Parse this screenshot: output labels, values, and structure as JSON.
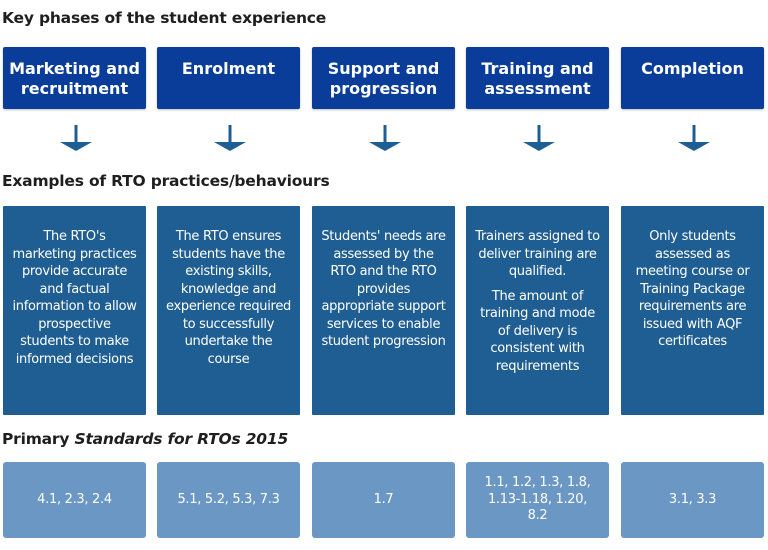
{
  "headings": {
    "phases": "Key phases of the student experience",
    "practices": "Examples of RTO practices/behaviours",
    "standards_prefix": "Primary ",
    "standards_title": "Standards for RTOs 2015"
  },
  "columns": [
    {
      "phase": "Marketing and recruitment",
      "practice": [
        "The RTO's marketing practices provide accurate and factual information to allow prospective students to make informed decisions"
      ],
      "standards": "4.1, 2.3, 2.4"
    },
    {
      "phase": "Enrolment",
      "practice": [
        "The RTO ensures students have the existing skills, knowledge and experience required to successfully undertake the course"
      ],
      "standards": "5.1, 5.2, 5.3, 7.3"
    },
    {
      "phase": "Support and progression",
      "practice": [
        "Students' needs are assessed by the RTO and the RTO provides appropriate support services to enable student progression"
      ],
      "standards": "1.7"
    },
    {
      "phase": "Training and assessment",
      "practice": [
        "Trainers assigned to deliver training are qualified.",
        "The amount of training and mode of delivery is consistent with requirements"
      ],
      "standards": "1.1, 1.2, 1.3, 1.8, 1.13-1.18, 1.20, 8.2"
    },
    {
      "phase": "Completion",
      "practice": [
        "Only students assessed as meeting course or Training Package requirements are issued with AQF certificates"
      ],
      "standards": "3.1, 3.3"
    }
  ],
  "colors": {
    "phase_box": "#0a3d99",
    "practice_box": "#1f5e92",
    "standard_box": "#6b97c4",
    "arrow": "#1f5e92"
  }
}
